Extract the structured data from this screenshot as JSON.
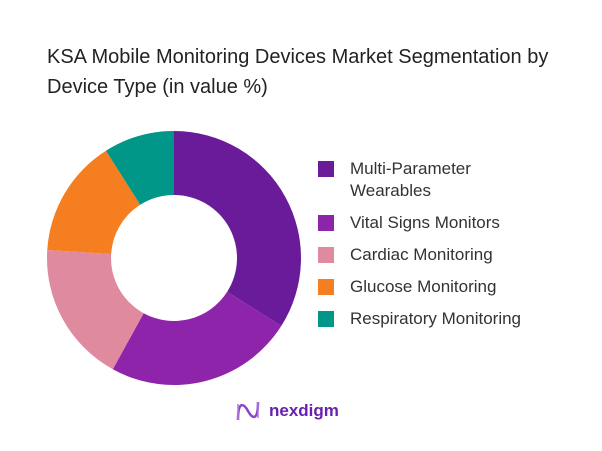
{
  "chart_data": {
    "type": "pie",
    "donut": true,
    "title": "KSA Mobile Monitoring Devices Market Segmentation by Device Type (in value %)",
    "legend_position": "right",
    "categories": [
      "Multi-Parameter Wearables",
      "Vital Signs Monitors",
      "Cardiac Monitoring",
      "Glucose Monitoring",
      "Respiratory Monitoring"
    ],
    "values": [
      34,
      24,
      18,
      15,
      9
    ],
    "colors": [
      "#6a1b9a",
      "#8e24aa",
      "#e08aa0",
      "#f57f20",
      "#009688"
    ]
  },
  "logo": {
    "text": "nexdigm",
    "color": "#6a1fb0"
  }
}
